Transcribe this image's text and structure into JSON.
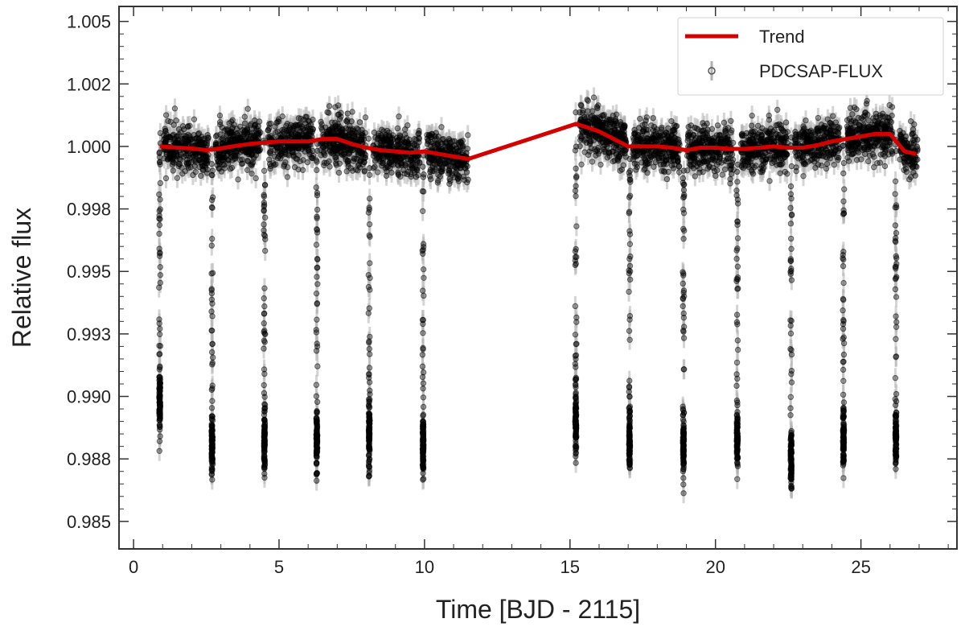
{
  "chart_data": {
    "type": "scatter",
    "title": "",
    "xlabel": "Time [BJD - 2115]",
    "ylabel": "Relative flux",
    "xlim": [
      -0.5,
      28.3
    ],
    "ylim": [
      0.9839,
      1.0056
    ],
    "x_ticks": [
      0,
      5,
      10,
      15,
      20,
      25
    ],
    "x_tick_labels": [
      "0",
      "5",
      "10",
      "15",
      "20",
      "25"
    ],
    "y_ticks": [
      0.985,
      0.9875,
      0.99,
      0.9925,
      0.995,
      0.9975,
      1.0,
      1.0025,
      1.005
    ],
    "y_tick_labels": [
      "0.985",
      "0.988",
      "0.990",
      "0.993",
      "0.995",
      "0.998",
      "1.000",
      "1.002",
      "1.005"
    ],
    "grid": false,
    "legend_position": "top-right",
    "series": [
      {
        "name": "Trend",
        "kind": "line",
        "color": "#d40000",
        "x": [
          0.9,
          1.5,
          2.0,
          2.5,
          3.0,
          3.5,
          4.0,
          4.5,
          5.0,
          5.5,
          6.0,
          6.5,
          7.0,
          7.5,
          8.0,
          8.5,
          9.0,
          9.5,
          10.0,
          10.5,
          11.0,
          11.5,
          15.2,
          15.5,
          16.0,
          16.5,
          17.0,
          17.5,
          18.0,
          18.5,
          19.0,
          19.5,
          20.0,
          20.5,
          21.0,
          21.5,
          22.0,
          22.5,
          23.0,
          23.5,
          24.0,
          24.5,
          25.0,
          25.5,
          26.0,
          26.5,
          26.9
        ],
        "y": [
          1.0,
          0.99995,
          0.99992,
          0.99985,
          0.99992,
          1.00002,
          1.0001,
          1.00015,
          1.0002,
          1.0002,
          1.0002,
          1.0003,
          1.0003,
          1.0001,
          0.99995,
          0.99985,
          0.9998,
          0.99975,
          0.9998,
          0.9997,
          0.9996,
          0.9995,
          1.0009,
          1.0008,
          1.0006,
          1.0003,
          1.0,
          1.0,
          1.0,
          0.99995,
          0.99985,
          0.99995,
          0.99995,
          0.9999,
          0.9999,
          0.99995,
          1.0,
          0.99995,
          0.99995,
          1.00005,
          1.0002,
          1.0003,
          1.0004,
          1.0005,
          1.0005,
          0.9998,
          0.9997
        ]
      },
      {
        "name": "PDCSAP-FLUX",
        "kind": "scatter_errorbar",
        "color": "#000000",
        "errorbar_color": "#b0b0b0",
        "segments": [
          [
            0.9,
            11.5
          ],
          [
            15.2,
            26.95
          ]
        ],
        "baseline_scatter": 0.0007,
        "errorbar": 0.0004,
        "transits": [
          {
            "x": 0.9,
            "depth": 0.9892
          },
          {
            "x": 2.7,
            "depth": 0.9875
          },
          {
            "x": 4.5,
            "depth": 0.9877
          },
          {
            "x": 6.3,
            "depth": 0.9877
          },
          {
            "x": 8.1,
            "depth": 0.9877
          },
          {
            "x": 9.95,
            "depth": 0.9874
          },
          {
            "x": 15.2,
            "depth": 0.9884
          },
          {
            "x": 17.05,
            "depth": 0.9877
          },
          {
            "x": 18.9,
            "depth": 0.9874
          },
          {
            "x": 20.75,
            "depth": 0.9877
          },
          {
            "x": 22.6,
            "depth": 0.9869
          },
          {
            "x": 24.4,
            "depth": 0.9877
          },
          {
            "x": 26.2,
            "depth": 0.9877
          }
        ],
        "transit_half_width": 0.1
      }
    ]
  }
}
